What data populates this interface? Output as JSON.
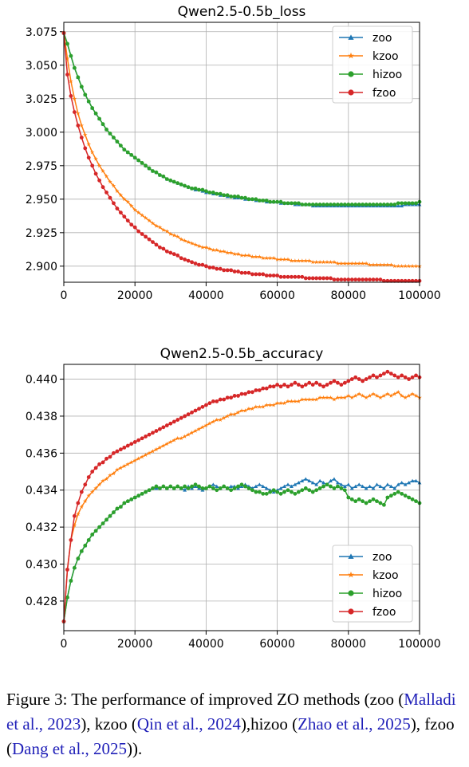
{
  "chart_data": [
    {
      "type": "line",
      "title": "Qwen2.5-0.5b_loss",
      "xlim": [
        0,
        100000
      ],
      "ylim": [
        2.888,
        3.082
      ],
      "x_ticks": [
        "0",
        "20000",
        "40000",
        "60000",
        "80000",
        "100000"
      ],
      "y_ticks": [
        "3.075",
        "3.050",
        "3.025",
        "3.000",
        "2.975",
        "2.950",
        "2.925",
        "2.900"
      ],
      "grid": true,
      "legend_position": "top-right",
      "x_step": 1000,
      "series": [
        {
          "name": "zoo",
          "color": "#1f77b4",
          "marker": "triangle",
          "values": [
            3.074,
            3.066,
            3.057,
            3.048,
            3.041,
            3.034,
            3.028,
            3.023,
            3.018,
            3.014,
            3.01,
            3.006,
            3.002,
            2.999,
            2.996,
            2.993,
            2.99,
            2.987,
            2.985,
            2.983,
            2.981,
            2.979,
            2.977,
            2.975,
            2.973,
            2.971,
            2.97,
            2.968,
            2.967,
            2.965,
            2.964,
            2.963,
            2.962,
            2.961,
            2.96,
            2.959,
            2.958,
            2.957,
            2.957,
            2.956,
            2.955,
            2.955,
            2.954,
            2.954,
            2.953,
            2.953,
            2.952,
            2.952,
            2.951,
            2.951,
            2.951,
            2.95,
            2.95,
            2.95,
            2.949,
            2.949,
            2.949,
            2.948,
            2.948,
            2.948,
            2.948,
            2.947,
            2.947,
            2.947,
            2.947,
            2.946,
            2.946,
            2.946,
            2.946,
            2.946,
            2.945,
            2.945,
            2.945,
            2.945,
            2.945,
            2.945,
            2.945,
            2.945,
            2.945,
            2.945,
            2.945,
            2.945,
            2.945,
            2.945,
            2.945,
            2.945,
            2.945,
            2.945,
            2.945,
            2.945,
            2.945,
            2.945,
            2.945,
            2.945,
            2.945,
            2.945,
            2.946,
            2.946,
            2.946,
            2.946,
            2.946
          ]
        },
        {
          "name": "kzoo",
          "color": "#ff7f0e",
          "marker": "star",
          "values": [
            3.074,
            3.055,
            3.038,
            3.025,
            3.014,
            3.005,
            2.998,
            2.991,
            2.985,
            2.98,
            2.975,
            2.971,
            2.967,
            2.963,
            2.96,
            2.956,
            2.953,
            2.95,
            2.948,
            2.945,
            2.942,
            2.94,
            2.938,
            2.936,
            2.934,
            2.932,
            2.93,
            2.929,
            2.927,
            2.926,
            2.924,
            2.923,
            2.922,
            2.92,
            2.919,
            2.918,
            2.917,
            2.916,
            2.915,
            2.914,
            2.914,
            2.913,
            2.912,
            2.912,
            2.911,
            2.911,
            2.91,
            2.91,
            2.909,
            2.909,
            2.908,
            2.908,
            2.908,
            2.907,
            2.907,
            2.907,
            2.906,
            2.906,
            2.906,
            2.906,
            2.905,
            2.905,
            2.905,
            2.905,
            2.904,
            2.904,
            2.904,
            2.904,
            2.904,
            2.904,
            2.903,
            2.903,
            2.903,
            2.903,
            2.903,
            2.903,
            2.903,
            2.902,
            2.902,
            2.902,
            2.902,
            2.902,
            2.902,
            2.902,
            2.902,
            2.902,
            2.901,
            2.901,
            2.901,
            2.901,
            2.901,
            2.901,
            2.901,
            2.9,
            2.9,
            2.9,
            2.9,
            2.9,
            2.9,
            2.9,
            2.9
          ]
        },
        {
          "name": "hizoo",
          "color": "#2ca02c",
          "marker": "circle",
          "values": [
            3.074,
            3.066,
            3.057,
            3.048,
            3.041,
            3.034,
            3.028,
            3.023,
            3.018,
            3.014,
            3.01,
            3.006,
            3.002,
            2.999,
            2.996,
            2.993,
            2.99,
            2.987,
            2.985,
            2.983,
            2.981,
            2.979,
            2.977,
            2.975,
            2.973,
            2.971,
            2.97,
            2.968,
            2.967,
            2.965,
            2.964,
            2.963,
            2.962,
            2.961,
            2.96,
            2.959,
            2.958,
            2.958,
            2.957,
            2.957,
            2.956,
            2.955,
            2.955,
            2.954,
            2.954,
            2.953,
            2.953,
            2.952,
            2.952,
            2.952,
            2.951,
            2.951,
            2.95,
            2.95,
            2.95,
            2.949,
            2.949,
            2.949,
            2.948,
            2.948,
            2.948,
            2.948,
            2.947,
            2.947,
            2.947,
            2.947,
            2.947,
            2.946,
            2.946,
            2.946,
            2.946,
            2.946,
            2.946,
            2.946,
            2.946,
            2.946,
            2.946,
            2.946,
            2.946,
            2.946,
            2.946,
            2.946,
            2.946,
            2.946,
            2.946,
            2.946,
            2.946,
            2.946,
            2.946,
            2.946,
            2.946,
            2.946,
            2.946,
            2.946,
            2.947,
            2.947,
            2.947,
            2.947,
            2.947,
            2.947,
            2.948
          ]
        },
        {
          "name": "fzoo",
          "color": "#d62728",
          "marker": "circle",
          "values": [
            3.074,
            3.043,
            3.027,
            3.015,
            3.005,
            2.996,
            2.988,
            2.981,
            2.975,
            2.969,
            2.964,
            2.959,
            2.955,
            2.951,
            2.947,
            2.943,
            2.94,
            2.937,
            2.934,
            2.931,
            2.929,
            2.926,
            2.924,
            2.922,
            2.92,
            2.918,
            2.916,
            2.914,
            2.913,
            2.911,
            2.91,
            2.909,
            2.908,
            2.906,
            2.905,
            2.904,
            2.903,
            2.902,
            2.901,
            2.901,
            2.9,
            2.899,
            2.899,
            2.898,
            2.898,
            2.897,
            2.897,
            2.897,
            2.896,
            2.896,
            2.895,
            2.895,
            2.895,
            2.894,
            2.894,
            2.894,
            2.894,
            2.893,
            2.893,
            2.893,
            2.893,
            2.892,
            2.892,
            2.892,
            2.892,
            2.892,
            2.892,
            2.892,
            2.891,
            2.891,
            2.891,
            2.891,
            2.891,
            2.891,
            2.891,
            2.891,
            2.89,
            2.89,
            2.89,
            2.89,
            2.89,
            2.89,
            2.89,
            2.89,
            2.89,
            2.89,
            2.89,
            2.89,
            2.89,
            2.89,
            2.889,
            2.889,
            2.889,
            2.889,
            2.889,
            2.889,
            2.889,
            2.889,
            2.889,
            2.889,
            2.889
          ]
        }
      ]
    },
    {
      "type": "line",
      "title": "Qwen2.5-0.5b_accuracy",
      "xlim": [
        0,
        100000
      ],
      "ylim": [
        0.4264,
        0.4408
      ],
      "x_ticks": [
        "0",
        "20000",
        "40000",
        "60000",
        "80000",
        "100000"
      ],
      "y_ticks": [
        "0.440",
        "0.438",
        "0.436",
        "0.434",
        "0.432",
        "0.430",
        "0.428"
      ],
      "grid": true,
      "legend_position": "bottom-right",
      "x_step": 1000,
      "series": [
        {
          "name": "zoo",
          "color": "#1f77b4",
          "marker": "triangle",
          "values": [
            0.4269,
            0.4282,
            0.4291,
            0.4298,
            0.4303,
            0.4307,
            0.431,
            0.4313,
            0.4316,
            0.4318,
            0.432,
            0.4322,
            0.4324,
            0.4326,
            0.4328,
            0.433,
            0.4331,
            0.4333,
            0.4334,
            0.4335,
            0.4336,
            0.4337,
            0.4338,
            0.4339,
            0.434,
            0.4341,
            0.4341,
            0.4341,
            0.4342,
            0.4341,
            0.4342,
            0.4341,
            0.4342,
            0.4341,
            0.434,
            0.4342,
            0.4341,
            0.4342,
            0.4341,
            0.434,
            0.4341,
            0.4342,
            0.4343,
            0.4342,
            0.4341,
            0.4342,
            0.4341,
            0.4342,
            0.4342,
            0.4341,
            0.4342,
            0.4343,
            0.4342,
            0.4341,
            0.4342,
            0.4343,
            0.4342,
            0.4341,
            0.434,
            0.4339,
            0.434,
            0.4341,
            0.4342,
            0.4343,
            0.4342,
            0.4343,
            0.4344,
            0.4345,
            0.4346,
            0.4345,
            0.4344,
            0.4343,
            0.4345,
            0.4344,
            0.4343,
            0.4345,
            0.4346,
            0.4344,
            0.4343,
            0.4342,
            0.4343,
            0.4341,
            0.4342,
            0.4343,
            0.4342,
            0.4341,
            0.4342,
            0.4341,
            0.4343,
            0.4342,
            0.4341,
            0.4343,
            0.4342,
            0.4341,
            0.4343,
            0.4344,
            0.4343,
            0.4344,
            0.4345,
            0.4345,
            0.4344
          ]
        },
        {
          "name": "kzoo",
          "color": "#ff7f0e",
          "marker": "star",
          "values": [
            0.4269,
            0.4297,
            0.4313,
            0.4321,
            0.4327,
            0.4331,
            0.4334,
            0.4337,
            0.4339,
            0.4341,
            0.4343,
            0.4345,
            0.4346,
            0.4348,
            0.4349,
            0.4351,
            0.4352,
            0.4353,
            0.4354,
            0.4355,
            0.4356,
            0.4357,
            0.4358,
            0.4359,
            0.436,
            0.4361,
            0.4362,
            0.4363,
            0.4364,
            0.4365,
            0.4366,
            0.4367,
            0.4368,
            0.4368,
            0.4369,
            0.437,
            0.4371,
            0.4372,
            0.4373,
            0.4374,
            0.4375,
            0.4376,
            0.4377,
            0.4378,
            0.4378,
            0.4379,
            0.438,
            0.4381,
            0.4381,
            0.4382,
            0.4383,
            0.4383,
            0.4384,
            0.4384,
            0.4385,
            0.4385,
            0.4385,
            0.4386,
            0.4386,
            0.4386,
            0.4387,
            0.4387,
            0.4387,
            0.4388,
            0.4388,
            0.4388,
            0.4388,
            0.4389,
            0.4389,
            0.4389,
            0.4389,
            0.4389,
            0.439,
            0.439,
            0.439,
            0.439,
            0.4389,
            0.439,
            0.439,
            0.439,
            0.4391,
            0.439,
            0.4391,
            0.4392,
            0.4391,
            0.439,
            0.4391,
            0.4392,
            0.4391,
            0.439,
            0.4391,
            0.4392,
            0.4391,
            0.4392,
            0.4393,
            0.4391,
            0.439,
            0.4391,
            0.4392,
            0.4391,
            0.439
          ]
        },
        {
          "name": "hizoo",
          "color": "#2ca02c",
          "marker": "circle",
          "values": [
            0.4269,
            0.4282,
            0.4291,
            0.4298,
            0.4303,
            0.4307,
            0.431,
            0.4313,
            0.4316,
            0.4318,
            0.432,
            0.4322,
            0.4324,
            0.4326,
            0.4328,
            0.433,
            0.4331,
            0.4333,
            0.4334,
            0.4335,
            0.4336,
            0.4337,
            0.4338,
            0.4339,
            0.434,
            0.4341,
            0.4342,
            0.4341,
            0.4342,
            0.4341,
            0.4342,
            0.4341,
            0.4342,
            0.4341,
            0.4342,
            0.4341,
            0.4342,
            0.4343,
            0.4342,
            0.4341,
            0.4341,
            0.4342,
            0.4341,
            0.434,
            0.4341,
            0.4342,
            0.4341,
            0.434,
            0.4341,
            0.4342,
            0.4343,
            0.4342,
            0.4341,
            0.434,
            0.4339,
            0.4339,
            0.4338,
            0.4338,
            0.4339,
            0.434,
            0.4339,
            0.4338,
            0.4339,
            0.434,
            0.4339,
            0.4338,
            0.4339,
            0.434,
            0.4341,
            0.434,
            0.4339,
            0.434,
            0.4341,
            0.4342,
            0.4343,
            0.4342,
            0.4341,
            0.4342,
            0.4341,
            0.434,
            0.4336,
            0.4335,
            0.4334,
            0.4335,
            0.4334,
            0.4333,
            0.4334,
            0.4335,
            0.4334,
            0.4333,
            0.4332,
            0.4336,
            0.4337,
            0.4338,
            0.4339,
            0.4338,
            0.4337,
            0.4336,
            0.4335,
            0.4334,
            0.4333
          ]
        },
        {
          "name": "fzoo",
          "color": "#d62728",
          "marker": "circle",
          "values": [
            0.4269,
            0.4297,
            0.4313,
            0.4326,
            0.4333,
            0.4339,
            0.4343,
            0.4347,
            0.435,
            0.4352,
            0.4354,
            0.4355,
            0.4357,
            0.4358,
            0.436,
            0.4361,
            0.4362,
            0.4363,
            0.4364,
            0.4365,
            0.4366,
            0.4367,
            0.4368,
            0.4369,
            0.437,
            0.4371,
            0.4372,
            0.4373,
            0.4374,
            0.4375,
            0.4376,
            0.4377,
            0.4378,
            0.4379,
            0.438,
            0.4381,
            0.4382,
            0.4383,
            0.4384,
            0.4385,
            0.4386,
            0.4387,
            0.4388,
            0.4388,
            0.4389,
            0.4389,
            0.439,
            0.439,
            0.4391,
            0.4391,
            0.4392,
            0.4392,
            0.4393,
            0.4393,
            0.4394,
            0.4394,
            0.4395,
            0.4395,
            0.4396,
            0.4396,
            0.4397,
            0.4396,
            0.4397,
            0.4396,
            0.4397,
            0.4398,
            0.4397,
            0.4396,
            0.4397,
            0.4398,
            0.4397,
            0.4398,
            0.4397,
            0.4396,
            0.4397,
            0.4398,
            0.4399,
            0.4398,
            0.4397,
            0.4398,
            0.4399,
            0.44,
            0.4401,
            0.44,
            0.4399,
            0.44,
            0.4401,
            0.4402,
            0.4401,
            0.4402,
            0.4403,
            0.4404,
            0.4403,
            0.4402,
            0.4401,
            0.4402,
            0.4401,
            0.44,
            0.4401,
            0.4402,
            0.4401
          ]
        }
      ]
    }
  ],
  "caption": {
    "prefix": "Figure 3:  The performance of improved ZO methods (zoo (",
    "cite1": "Malladi et al., 2023",
    "mid1": "), kzoo (",
    "cite2": "Qin et al., 2024",
    "mid2": "),hizoo (",
    "cite3": "Zhao et al., 2025",
    "mid3": "), fzoo (",
    "cite4": "Dang et al., 2025",
    "suffix": "))."
  }
}
